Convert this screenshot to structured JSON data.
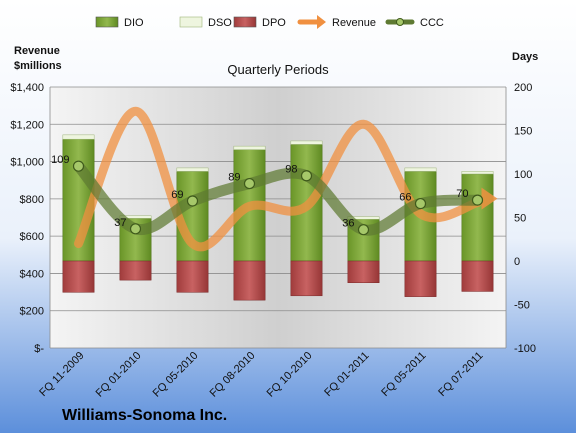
{
  "chart_data": {
    "type": "bar",
    "company": "Williams-Sonoma Inc.",
    "subtitle": "Quarterly Periods",
    "y_left_label_line1": "Revenue",
    "y_left_label_line2": "$millions",
    "y_right_label": "Days",
    "y_left_ticks": [
      "$-",
      "$200",
      "$400",
      "$600",
      "$800",
      "$1,000",
      "$1,200",
      "$1,400"
    ],
    "y_right_ticks": [
      "-100",
      "-50",
      "0",
      "50",
      "100",
      "150",
      "200"
    ],
    "ylim_left": [
      0,
      1400
    ],
    "ylim_right": [
      -100,
      200
    ],
    "categories": [
      "FQ 11-2009",
      "FQ 01-2010",
      "FQ 05-2010",
      "FQ 08-2010",
      "FQ 10-2010",
      "FQ 01-2011",
      "FQ 05-2011",
      "FQ 07-2011"
    ],
    "legend": [
      "DIO",
      "DSO",
      "DPO",
      "Revenue",
      "CCC"
    ],
    "legend_position": "top",
    "colors": {
      "DIO": "#77a032",
      "DSO": "#eef5df",
      "DPO": "#b04a4a",
      "Revenue": "#f09040",
      "CCC": "#5e7a32"
    },
    "series": [
      {
        "name": "DIO",
        "axis": "right",
        "values": [
          140,
          49,
          103,
          128,
          134,
          48,
          103,
          100
        ]
      },
      {
        "name": "DSO",
        "axis": "right",
        "values": [
          5,
          3,
          4,
          4,
          4,
          3,
          4,
          3
        ]
      },
      {
        "name": "DPO",
        "axis": "right",
        "values": [
          -36,
          -22,
          -36,
          -45,
          -40,
          -25,
          -41,
          -35
        ]
      },
      {
        "name": "Revenue",
        "axis": "left",
        "values": [
          560,
          1270,
          560,
          760,
          760,
          1200,
          720,
          780
        ]
      },
      {
        "name": "CCC",
        "axis": "right",
        "values": [
          109,
          37,
          69,
          89,
          98,
          36,
          66,
          70
        ],
        "labels": [
          "109",
          "37",
          "69",
          "89",
          "98",
          "36",
          "66",
          "70"
        ]
      }
    ]
  }
}
